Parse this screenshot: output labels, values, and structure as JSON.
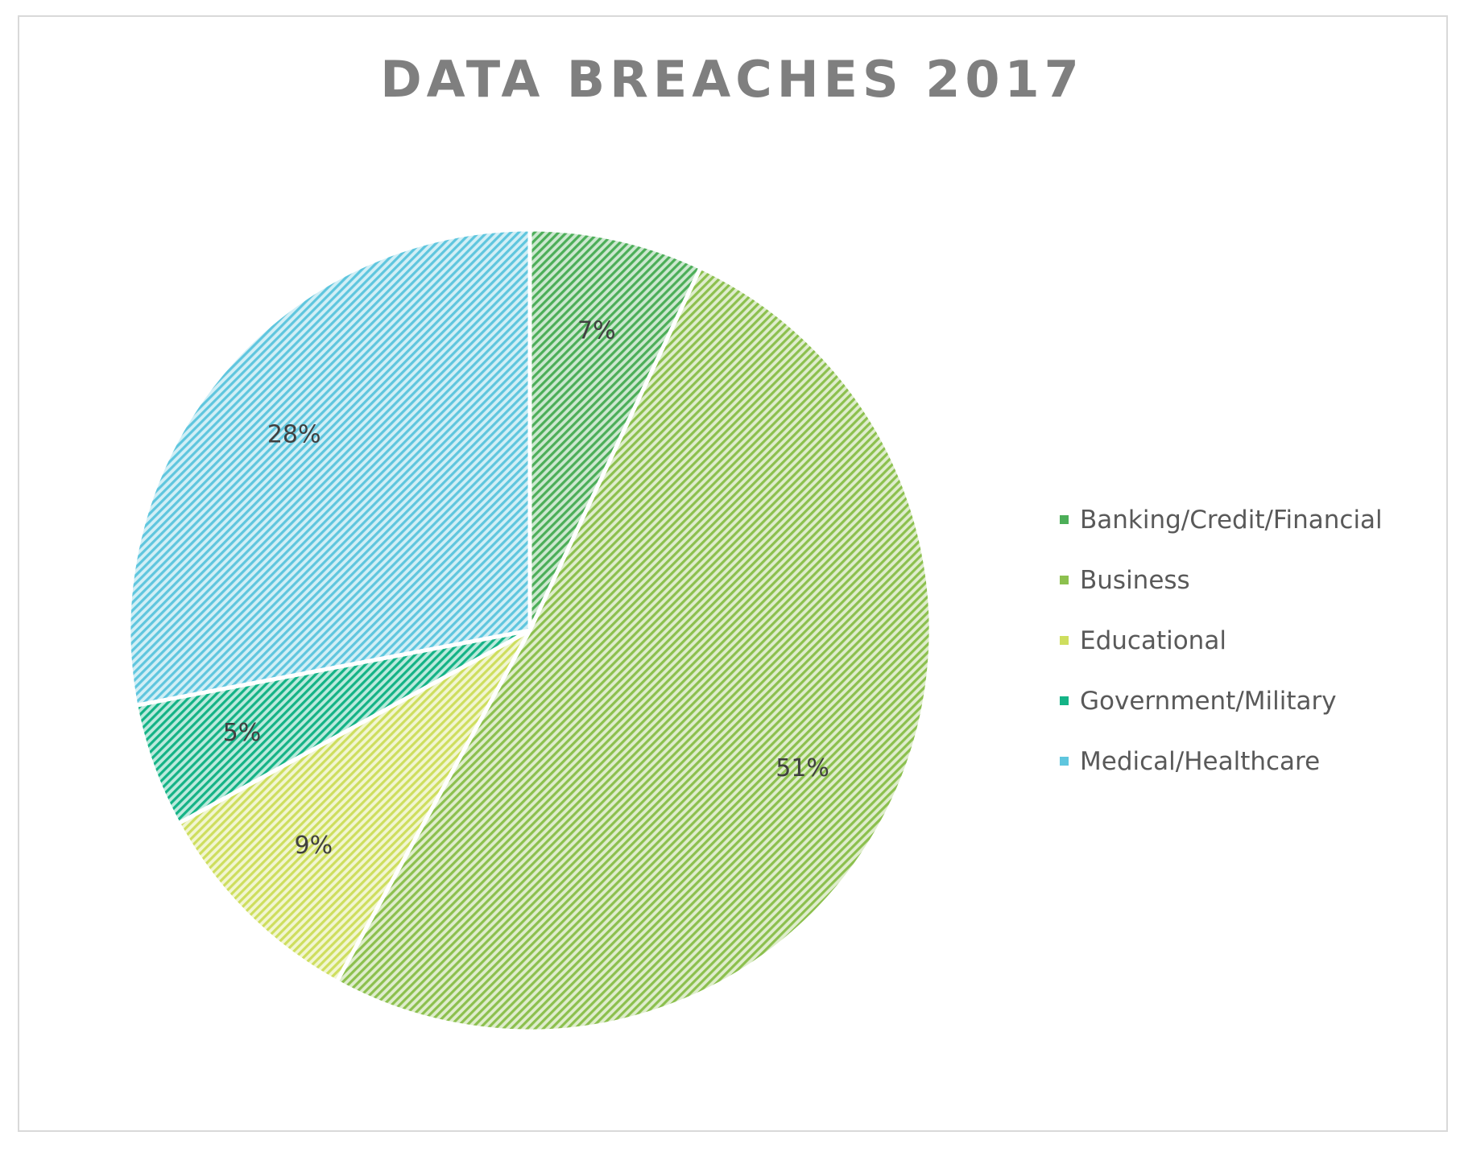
{
  "chart_data": {
    "type": "pie",
    "title": "DATA BREACHES 2017",
    "categories": [
      "Banking/Credit/Financial",
      "Business",
      "Educational",
      "Government/Military",
      "Medical/Healthcare"
    ],
    "values": [
      7,
      51,
      9,
      5,
      28
    ],
    "data_labels": [
      "7%",
      "51%",
      "9%",
      "5%",
      "28%"
    ],
    "colors": [
      "#4cae58",
      "#8cc04e",
      "#cede5e",
      "#14b386",
      "#5fc6de"
    ],
    "fill_pattern": "diagonal-hatch",
    "start_angle": "12 o'clock",
    "direction": "clockwise",
    "legend_position": "right"
  }
}
